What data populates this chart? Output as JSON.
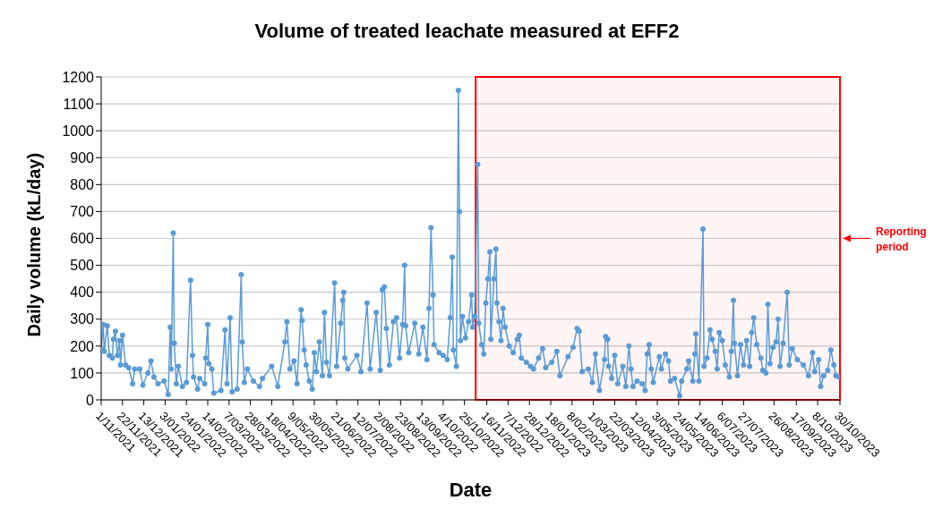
{
  "chart_data": {
    "type": "line",
    "title": "Volume of treated leachate measured at EFF2",
    "xlabel": "Date",
    "ylabel": "Daily volume (kL/day)",
    "x": [
      "2021-11-01",
      "2021-11-03",
      "2021-11-04",
      "2021-11-07",
      "2021-11-09",
      "2021-11-12",
      "2021-11-13",
      "2021-11-15",
      "2021-11-17",
      "2021-11-19",
      "2021-11-20",
      "2021-11-22",
      "2021-11-25",
      "2021-11-28",
      "2021-12-02",
      "2021-12-04",
      "2021-12-09",
      "2021-12-12",
      "2021-12-17",
      "2021-12-20",
      "2021-12-23",
      "2021-12-27",
      "2022-01-02",
      "2022-01-06",
      "2022-01-08",
      "2022-01-09",
      "2022-01-11",
      "2022-01-12",
      "2022-01-14",
      "2022-01-16",
      "2022-01-20",
      "2022-01-24",
      "2022-01-28",
      "2022-01-30",
      "2022-01-31",
      "2022-02-04",
      "2022-02-06",
      "2022-02-11",
      "2022-02-12",
      "2022-02-14",
      "2022-02-15",
      "2022-02-18",
      "2022-02-20",
      "2022-02-27",
      "2022-03-03",
      "2022-03-05",
      "2022-03-08",
      "2022-03-10",
      "2022-03-15",
      "2022-03-19",
      "2022-03-20",
      "2022-03-22",
      "2022-03-25",
      "2022-03-31",
      "2022-04-06",
      "2022-04-09",
      "2022-04-18",
      "2022-04-24",
      "2022-05-01",
      "2022-05-03",
      "2022-05-06",
      "2022-05-10",
      "2022-05-13",
      "2022-05-17",
      "2022-05-18",
      "2022-05-20",
      "2022-05-22",
      "2022-05-25",
      "2022-05-28",
      "2022-05-30",
      "2022-06-01",
      "2022-06-04",
      "2022-06-07",
      "2022-06-09",
      "2022-06-11",
      "2022-06-14",
      "2022-06-19",
      "2022-06-21",
      "2022-06-25",
      "2022-06-27",
      "2022-06-28",
      "2022-06-29",
      "2022-07-02",
      "2022-07-11",
      "2022-07-15",
      "2022-07-21",
      "2022-07-24",
      "2022-07-30",
      "2022-08-03",
      "2022-08-05",
      "2022-08-07",
      "2022-08-09",
      "2022-08-12",
      "2022-08-16",
      "2022-08-19",
      "2022-08-22",
      "2022-08-25",
      "2022-08-27",
      "2022-08-28",
      "2022-08-31",
      "2022-09-06",
      "2022-09-10",
      "2022-09-14",
      "2022-09-18",
      "2022-09-20",
      "2022-09-22",
      "2022-09-24",
      "2022-09-25",
      "2022-09-30",
      "2022-10-04",
      "2022-10-08",
      "2022-10-11",
      "2022-10-13",
      "2022-10-14",
      "2022-10-17",
      "2022-10-19",
      "2022-10-20",
      "2022-10-21",
      "2022-10-23",
      "2022-10-26",
      "2022-10-29",
      "2022-11-01",
      "2022-11-02",
      "2022-11-04",
      "2022-11-07",
      "2022-11-08",
      "2022-11-11",
      "2022-11-13",
      "2022-11-15",
      "2022-11-17",
      "2022-11-19",
      "2022-11-20",
      "2022-11-23",
      "2022-11-25",
      "2022-11-26",
      "2022-11-28",
      "2022-11-30",
      "2022-12-02",
      "2022-12-04",
      "2022-12-08",
      "2022-12-12",
      "2022-12-16",
      "2022-12-18",
      "2022-12-20",
      "2022-12-25",
      "2022-12-29",
      "2023-01-01",
      "2023-01-06",
      "2023-01-10",
      "2023-01-13",
      "2023-01-19",
      "2023-01-24",
      "2023-01-27",
      "2023-02-04",
      "2023-02-09",
      "2023-02-13",
      "2023-02-15",
      "2023-02-18",
      "2023-02-24",
      "2023-02-28",
      "2023-03-03",
      "2023-03-07",
      "2023-03-12",
      "2023-03-13",
      "2023-03-15",
      "2023-03-16",
      "2023-03-19",
      "2023-03-22",
      "2023-03-25",
      "2023-03-30",
      "2023-04-02",
      "2023-04-05",
      "2023-04-07",
      "2023-04-09",
      "2023-04-13",
      "2023-04-18",
      "2023-04-21",
      "2023-04-23",
      "2023-04-25",
      "2023-04-27",
      "2023-04-29",
      "2023-05-05",
      "2023-05-07",
      "2023-05-11",
      "2023-05-14",
      "2023-05-16",
      "2023-05-20",
      "2023-05-25",
      "2023-05-27",
      "2023-06-01",
      "2023-06-03",
      "2023-06-07",
      "2023-06-09",
      "2023-06-10",
      "2023-06-13",
      "2023-06-17",
      "2023-06-18",
      "2023-06-21",
      "2023-06-24",
      "2023-06-26",
      "2023-06-29",
      "2023-07-01",
      "2023-07-03",
      "2023-07-06",
      "2023-07-09",
      "2023-07-13",
      "2023-07-15",
      "2023-07-17",
      "2023-07-18",
      "2023-07-21",
      "2023-07-24",
      "2023-07-27",
      "2023-07-30",
      "2023-08-02",
      "2023-08-04",
      "2023-08-06",
      "2023-08-09",
      "2023-08-13",
      "2023-08-15",
      "2023-08-18",
      "2023-08-20",
      "2023-08-22",
      "2023-08-25",
      "2023-08-28",
      "2023-08-30",
      "2023-09-01",
      "2023-09-04",
      "2023-09-08",
      "2023-09-10",
      "2023-09-13",
      "2023-09-18",
      "2023-09-24",
      "2023-09-29",
      "2023-10-03",
      "2023-10-05",
      "2023-10-09",
      "2023-10-11",
      "2023-10-14",
      "2023-10-18",
      "2023-10-21",
      "2023-10-24",
      "2023-10-26",
      "2023-10-29"
    ],
    "series": [
      {
        "color": "#5b9bd5",
        "values": [
          190,
          280,
          180,
          275,
          165,
          155,
          225,
          255,
          165,
          220,
          130,
          240,
          130,
          120,
          60,
          115,
          115,
          55,
          100,
          145,
          85,
          60,
          70,
          20,
          270,
          115,
          620,
          210,
          60,
          125,
          50,
          65,
          445,
          165,
          85,
          40,
          80,
          60,
          155,
          280,
          135,
          115,
          25,
          35,
          260,
          60,
          305,
          30,
          40,
          465,
          215,
          65,
          115,
          70,
          50,
          80,
          125,
          50,
          215,
          290,
          115,
          145,
          60,
          335,
          295,
          185,
          130,
          70,
          40,
          175,
          105,
          215,
          90,
          325,
          140,
          90,
          435,
          125,
          285,
          370,
          400,
          155,
          115,
          165,
          105,
          360,
          115,
          325,
          110,
          410,
          420,
          265,
          130,
          290,
          305,
          155,
          280,
          500,
          275,
          175,
          285,
          170,
          270,
          150,
          340,
          640,
          390,
          205,
          175,
          165,
          150,
          305,
          530,
          185,
          125,
          1150,
          700,
          220,
          310,
          230,
          290,
          390,
          270,
          310,
          875,
          285,
          205,
          170,
          360,
          450,
          550,
          225,
          450,
          560,
          360,
          290,
          220,
          340,
          270,
          200,
          175,
          225,
          240,
          155,
          140,
          125,
          115,
          155,
          190,
          120,
          140,
          180,
          90,
          160,
          195,
          265,
          255,
          105,
          115,
          65,
          170,
          35,
          150,
          235,
          225,
          125,
          80,
          165,
          60,
          125,
          50,
          200,
          115,
          50,
          70,
          60,
          35,
          170,
          205,
          115,
          65,
          160,
          115,
          170,
          145,
          70,
          80,
          15,
          70,
          115,
          145,
          70,
          170,
          245,
          70,
          635,
          125,
          155,
          260,
          225,
          180,
          115,
          250,
          220,
          130,
          85,
          180,
          370,
          210,
          90,
          205,
          130,
          220,
          125,
          250,
          305,
          205,
          155,
          110,
          100,
          355,
          135,
          195,
          215,
          300,
          125,
          210,
          400,
          130,
          190,
          150,
          130,
          90,
          175,
          105,
          150,
          50,
          90,
          110,
          185,
          130,
          90,
          85
        ]
      }
    ],
    "xlim": [
      "2021-11-01",
      "2023-10-30"
    ],
    "xticks": [
      {
        "value": "2021-11-01",
        "label": "1/11/2021"
      },
      {
        "value": "2021-11-22",
        "label": "22/11/2021"
      },
      {
        "value": "2021-12-13",
        "label": "13/12/2021"
      },
      {
        "value": "2022-01-03",
        "label": "3/01/2022"
      },
      {
        "value": "2022-01-24",
        "label": "24/01/2022"
      },
      {
        "value": "2022-02-14",
        "label": "14/02/2022"
      },
      {
        "value": "2022-03-07",
        "label": "7/03/2022"
      },
      {
        "value": "2022-03-28",
        "label": "28/03/2022"
      },
      {
        "value": "2022-04-18",
        "label": "18/04/2022"
      },
      {
        "value": "2022-05-09",
        "label": "9/05/2022"
      },
      {
        "value": "2022-05-30",
        "label": "30/05/2022"
      },
      {
        "value": "2022-06-21",
        "label": "21/06/2022"
      },
      {
        "value": "2022-07-12",
        "label": "12/07/2022"
      },
      {
        "value": "2022-08-02",
        "label": "2/08/2022"
      },
      {
        "value": "2022-08-23",
        "label": "23/08/2022"
      },
      {
        "value": "2022-09-13",
        "label": "13/09/2022"
      },
      {
        "value": "2022-10-04",
        "label": "4/10/2022"
      },
      {
        "value": "2022-10-25",
        "label": "25/10/2022"
      },
      {
        "value": "2022-11-16",
        "label": "16/11/2022"
      },
      {
        "value": "2022-12-07",
        "label": "7/12/2022"
      },
      {
        "value": "2022-12-28",
        "label": "28/12/2022"
      },
      {
        "value": "2023-01-18",
        "label": "18/01/2023"
      },
      {
        "value": "2023-02-08",
        "label": "8/02/2023"
      },
      {
        "value": "2023-03-01",
        "label": "1/03/2023"
      },
      {
        "value": "2023-03-22",
        "label": "22/03/2023"
      },
      {
        "value": "2023-04-12",
        "label": "12/04/2023"
      },
      {
        "value": "2023-05-03",
        "label": "3/05/2023"
      },
      {
        "value": "2023-05-24",
        "label": "24/05/2023"
      },
      {
        "value": "2023-06-14",
        "label": "14/06/2023"
      },
      {
        "value": "2023-07-06",
        "label": "6/07/2023"
      },
      {
        "value": "2023-07-27",
        "label": "27/07/2023"
      },
      {
        "value": "2023-08-26",
        "label": "26/08/2023"
      },
      {
        "value": "2023-09-17",
        "label": "17/09/2023"
      },
      {
        "value": "2023-10-08",
        "label": "8/10/2023"
      },
      {
        "value": "2023-10-30",
        "label": "30/10/2023"
      }
    ],
    "ylim": [
      0,
      1200
    ],
    "yticks": [
      0,
      100,
      200,
      300,
      400,
      500,
      600,
      700,
      800,
      900,
      1000,
      1100,
      1200
    ],
    "grid": "y",
    "marker": "circle",
    "line_style": "solid",
    "bands": [
      {
        "axis": "x",
        "from": "2022-11-05",
        "to": "2023-10-30",
        "label": "Reporting period",
        "color": "#ff0000"
      }
    ]
  }
}
